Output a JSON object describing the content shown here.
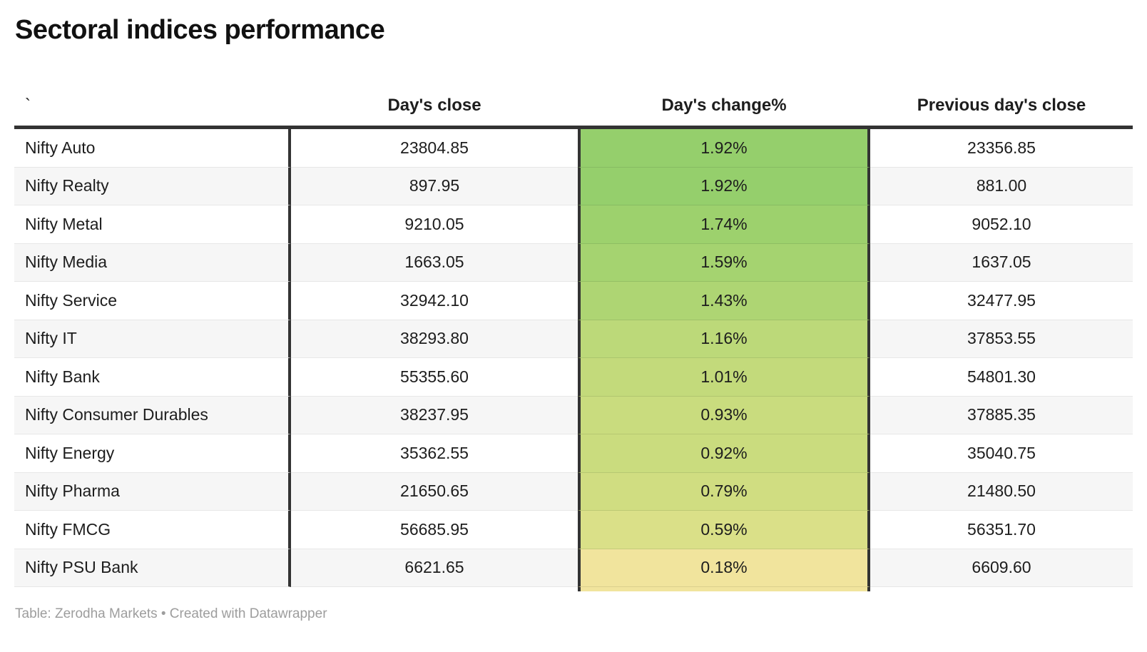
{
  "header": {
    "title": "Sectoral indices performance"
  },
  "table": {
    "columns": [
      "`",
      "Day's close",
      "Day's change%",
      "Previous day's close"
    ],
    "rows": [
      {
        "name": "Nifty Auto",
        "close": "23804.85",
        "change": "1.92%",
        "prev": "23356.85",
        "change_color": "#95cf6c"
      },
      {
        "name": "Nifty Realty",
        "close": "897.95",
        "change": "1.92%",
        "prev": "881.00",
        "change_color": "#95cf6c"
      },
      {
        "name": "Nifty Metal",
        "close": "9210.05",
        "change": "1.74%",
        "prev": "9052.10",
        "change_color": "#9dd16d"
      },
      {
        "name": "Nifty Media",
        "close": "1663.05",
        "change": "1.59%",
        "prev": "1637.05",
        "change_color": "#a5d370"
      },
      {
        "name": "Nifty Service",
        "close": "32942.10",
        "change": "1.43%",
        "prev": "32477.95",
        "change_color": "#aed573"
      },
      {
        "name": "Nifty IT",
        "close": "38293.80",
        "change": "1.16%",
        "prev": "37853.55",
        "change_color": "#bcd979"
      },
      {
        "name": "Nifty Bank",
        "close": "55355.60",
        "change": "1.01%",
        "prev": "54801.30",
        "change_color": "#c3da7b"
      },
      {
        "name": "Nifty Consumer Durables",
        "close": "38237.95",
        "change": "0.93%",
        "prev": "37885.35",
        "change_color": "#c9dc7e"
      },
      {
        "name": "Nifty Energy",
        "close": "35362.55",
        "change": "0.92%",
        "prev": "35040.75",
        "change_color": "#cadc7e"
      },
      {
        "name": "Nifty Pharma",
        "close": "21650.65",
        "change": "0.79%",
        "prev": "21480.50",
        "change_color": "#d0dd81"
      },
      {
        "name": "Nifty FMCG",
        "close": "56685.95",
        "change": "0.59%",
        "prev": "56351.70",
        "change_color": "#dae088"
      },
      {
        "name": "Nifty PSU Bank",
        "close": "6621.65",
        "change": "0.18%",
        "prev": "6609.60",
        "change_color": "#f1e49d"
      }
    ]
  },
  "footer": {
    "text": "Table: Zerodha Markets • Created with Datawrapper"
  },
  "colors": {
    "rule": "#333333",
    "zebra": "#f6f6f6",
    "row_divider": "#e7e7e7",
    "text": "#1d1d1d",
    "footer_text": "#9d9d9d"
  },
  "chart_data": {
    "type": "table",
    "title": "Sectoral indices performance",
    "columns": [
      "`",
      "Day's close",
      "Day's change%",
      "Previous day's close"
    ],
    "rows": [
      [
        "Nifty Auto",
        23804.85,
        1.92,
        23356.85
      ],
      [
        "Nifty Realty",
        897.95,
        1.92,
        881.0
      ],
      [
        "Nifty Metal",
        9210.05,
        1.74,
        9052.1
      ],
      [
        "Nifty Media",
        1663.05,
        1.59,
        1637.05
      ],
      [
        "Nifty Service",
        32942.1,
        1.43,
        32477.95
      ],
      [
        "Nifty IT",
        38293.8,
        1.16,
        37853.55
      ],
      [
        "Nifty Bank",
        55355.6,
        1.01,
        54801.3
      ],
      [
        "Nifty Consumer Durables",
        38237.95,
        0.93,
        37885.35
      ],
      [
        "Nifty Energy",
        35362.55,
        0.92,
        35040.75
      ],
      [
        "Nifty Pharma",
        21650.65,
        0.79,
        21480.5
      ],
      [
        "Nifty FMCG",
        56685.95,
        0.59,
        56351.7
      ],
      [
        "Nifty PSU Bank",
        6621.65,
        0.18,
        6609.6
      ]
    ],
    "notes": "Day's change% column uses a green-to-yellow heatmap fill per row; rows sorted descending by day's change%.",
    "source": "Table: Zerodha Markets • Created with Datawrapper"
  }
}
